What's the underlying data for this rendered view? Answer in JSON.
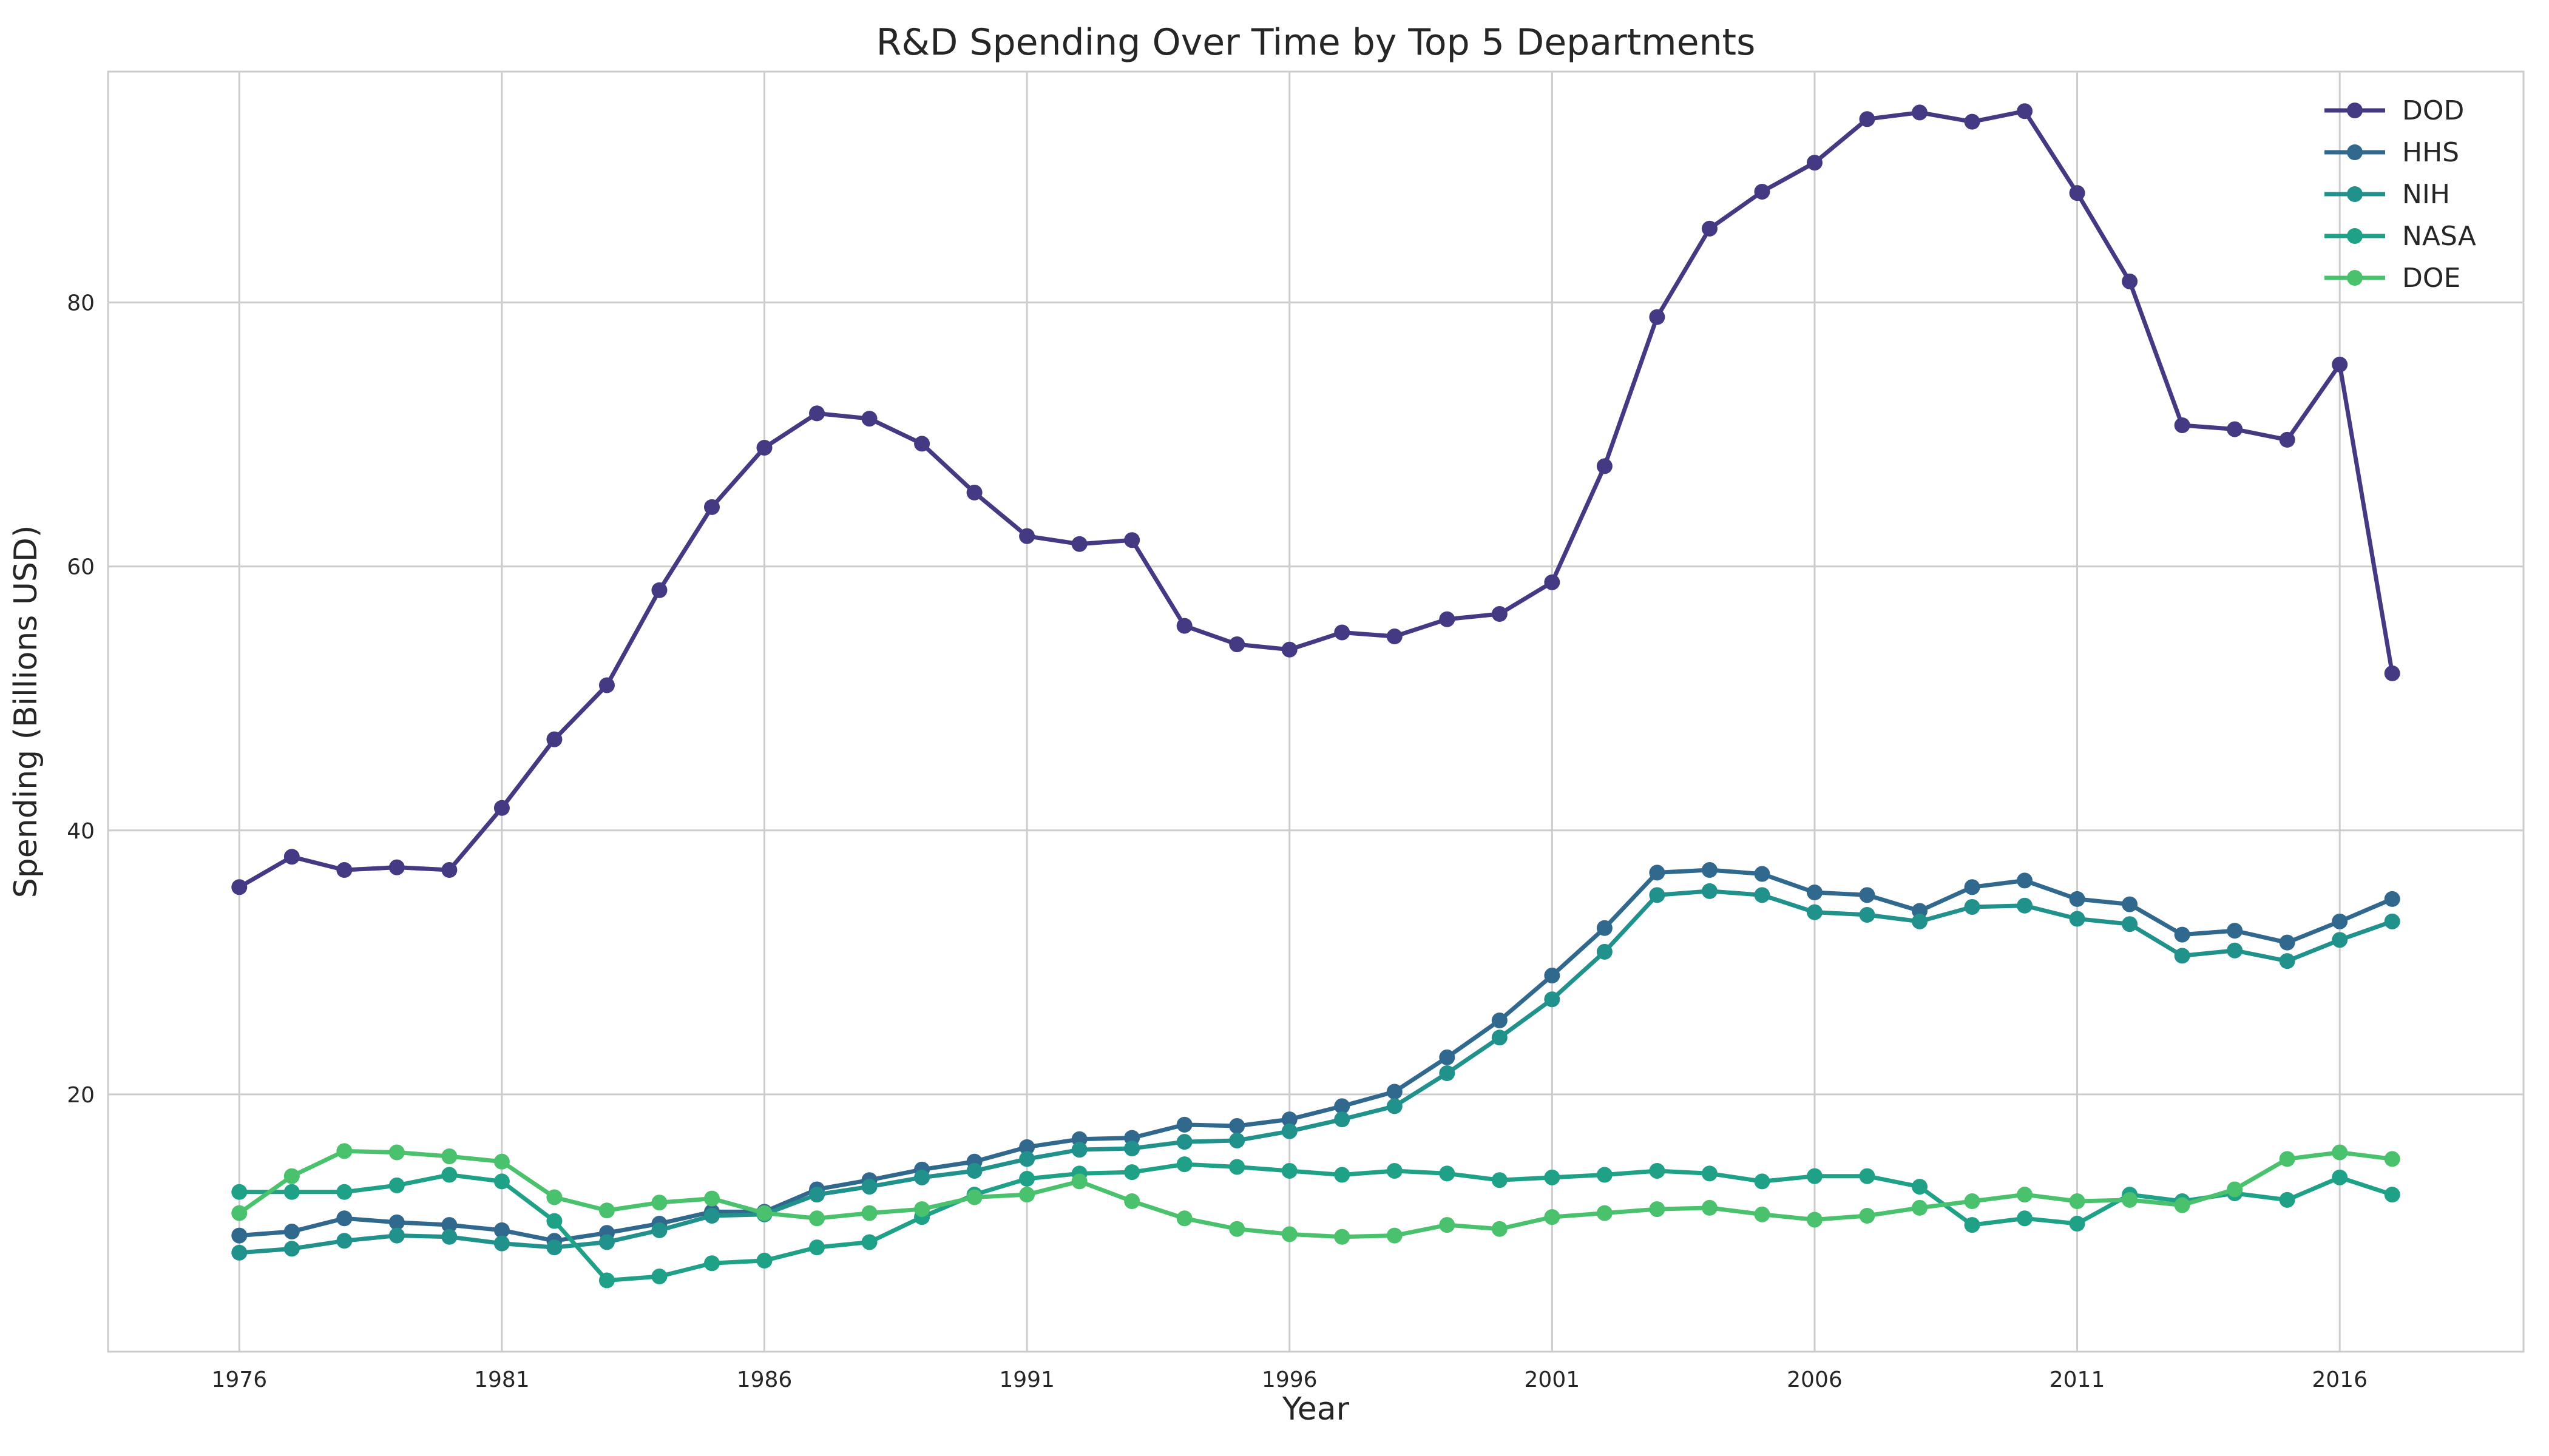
{
  "chart_data": {
    "type": "line",
    "title": "R&D Spending Over Time by Top 5 Departments",
    "xlabel": "Year",
    "ylabel": "Spending (Billions USD)",
    "xlim": [
      1973.5,
      2019.5
    ],
    "ylim": [
      0.5,
      97.5
    ],
    "xticks": [
      1976,
      1981,
      1986,
      1991,
      1996,
      2001,
      2006,
      2011,
      2016
    ],
    "yticks": [
      20,
      40,
      60,
      80
    ],
    "grid": true,
    "legend_position": "top-right",
    "x": [
      1976,
      1977,
      1978,
      1979,
      1980,
      1981,
      1982,
      1983,
      1984,
      1985,
      1986,
      1987,
      1988,
      1989,
      1990,
      1991,
      1992,
      1993,
      1994,
      1995,
      1996,
      1997,
      1998,
      1999,
      2000,
      2001,
      2002,
      2003,
      2004,
      2005,
      2006,
      2007,
      2008,
      2009,
      2010,
      2011,
      2012,
      2013,
      2014,
      2015,
      2016,
      2017
    ],
    "series": [
      {
        "name": "DOD",
        "color": "#443983",
        "values": [
          35.7,
          38.0,
          37.0,
          37.2,
          37.0,
          41.7,
          46.9,
          51.0,
          58.2,
          64.5,
          69.0,
          71.6,
          71.2,
          69.3,
          65.6,
          62.3,
          61.7,
          62.0,
          55.5,
          54.1,
          53.7,
          55.0,
          54.7,
          56.0,
          56.4,
          58.8,
          67.6,
          78.9,
          85.6,
          88.4,
          90.6,
          93.9,
          94.4,
          93.7,
          94.5,
          88.3,
          81.6,
          70.7,
          70.4,
          69.6,
          75.3,
          51.9
        ]
      },
      {
        "name": "HHS",
        "color": "#31688e",
        "values": [
          9.3,
          9.6,
          10.6,
          10.3,
          10.1,
          9.7,
          8.9,
          9.5,
          10.2,
          11.1,
          11.1,
          12.8,
          13.5,
          14.3,
          14.9,
          16.0,
          16.6,
          16.7,
          17.7,
          17.6,
          18.1,
          19.1,
          20.2,
          22.8,
          25.6,
          29.0,
          32.6,
          36.8,
          37.0,
          36.7,
          35.3,
          35.1,
          33.9,
          35.7,
          36.2,
          34.8,
          34.4,
          32.1,
          32.4,
          31.5,
          33.1,
          34.8
        ]
      },
      {
        "name": "NIH",
        "color": "#21918c",
        "values": [
          8.0,
          8.3,
          8.9,
          9.3,
          9.2,
          8.7,
          8.4,
          8.8,
          9.7,
          10.8,
          10.9,
          12.4,
          13.0,
          13.7,
          14.2,
          15.1,
          15.8,
          15.9,
          16.4,
          16.5,
          17.2,
          18.1,
          19.1,
          21.6,
          24.3,
          27.2,
          30.8,
          35.1,
          35.4,
          35.1,
          33.8,
          33.6,
          33.1,
          34.2,
          34.3,
          33.3,
          32.9,
          30.5,
          30.9,
          30.1,
          31.7,
          33.1
        ]
      },
      {
        "name": "NASA",
        "color": "#1fa187",
        "values": [
          12.6,
          12.6,
          12.6,
          13.1,
          13.9,
          13.4,
          10.4,
          5.9,
          6.2,
          7.2,
          7.4,
          8.4,
          8.8,
          10.7,
          12.4,
          13.6,
          14.0,
          14.1,
          14.7,
          14.5,
          14.2,
          13.9,
          14.2,
          14.0,
          13.5,
          13.7,
          13.9,
          14.2,
          14.0,
          13.4,
          13.8,
          13.8,
          13.0,
          10.1,
          10.6,
          10.2,
          12.4,
          11.9,
          12.5,
          12.0,
          13.7,
          12.4
        ]
      },
      {
        "name": "DOE",
        "color": "#4ac16d",
        "values": [
          11.0,
          13.8,
          15.7,
          15.6,
          15.3,
          14.9,
          12.2,
          11.2,
          11.8,
          12.1,
          11.0,
          10.6,
          11.0,
          11.3,
          12.2,
          12.4,
          13.4,
          11.9,
          10.6,
          9.8,
          9.4,
          9.2,
          9.3,
          10.1,
          9.8,
          10.7,
          11.0,
          11.3,
          11.4,
          10.9,
          10.5,
          10.8,
          11.4,
          11.9,
          12.4,
          11.9,
          12.0,
          11.6,
          12.8,
          15.1,
          15.6,
          15.1
        ]
      }
    ]
  }
}
